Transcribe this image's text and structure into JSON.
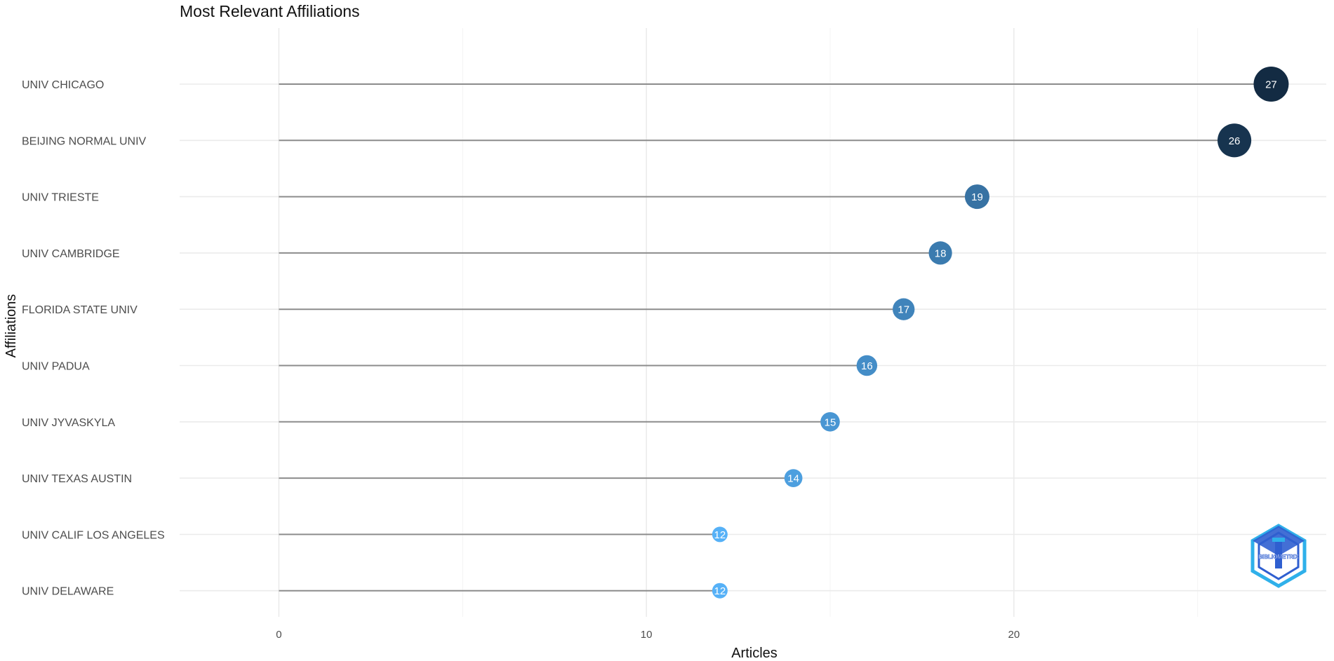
{
  "chart_data": {
    "type": "lollipop",
    "title": "Most Relevant Affiliations",
    "xlabel": "Articles",
    "ylabel": "Affiliations",
    "xlim": [
      -2.7,
      28.5
    ],
    "x_ticks": [
      0,
      10,
      20
    ],
    "grid": true,
    "categories": [
      "UNIV CHICAGO",
      "BEIJING NORMAL UNIV",
      "UNIV TRIESTE",
      "UNIV CAMBRIDGE",
      "FLORIDA STATE UNIV",
      "UNIV PADUA",
      "UNIV JYVASKYLA",
      "UNIV TEXAS AUSTIN",
      "UNIV CALIF LOS ANGELES",
      "UNIV DELAWARE"
    ],
    "values": [
      27,
      26,
      19,
      18,
      17,
      16,
      15,
      14,
      12,
      12
    ],
    "color_scale": {
      "low": "#56b1f7",
      "high": "#132b43"
    },
    "logo": {
      "text": "BIBLIOMETRIX",
      "colors": [
        "#2f5fd0",
        "#2fb0ea"
      ]
    }
  }
}
